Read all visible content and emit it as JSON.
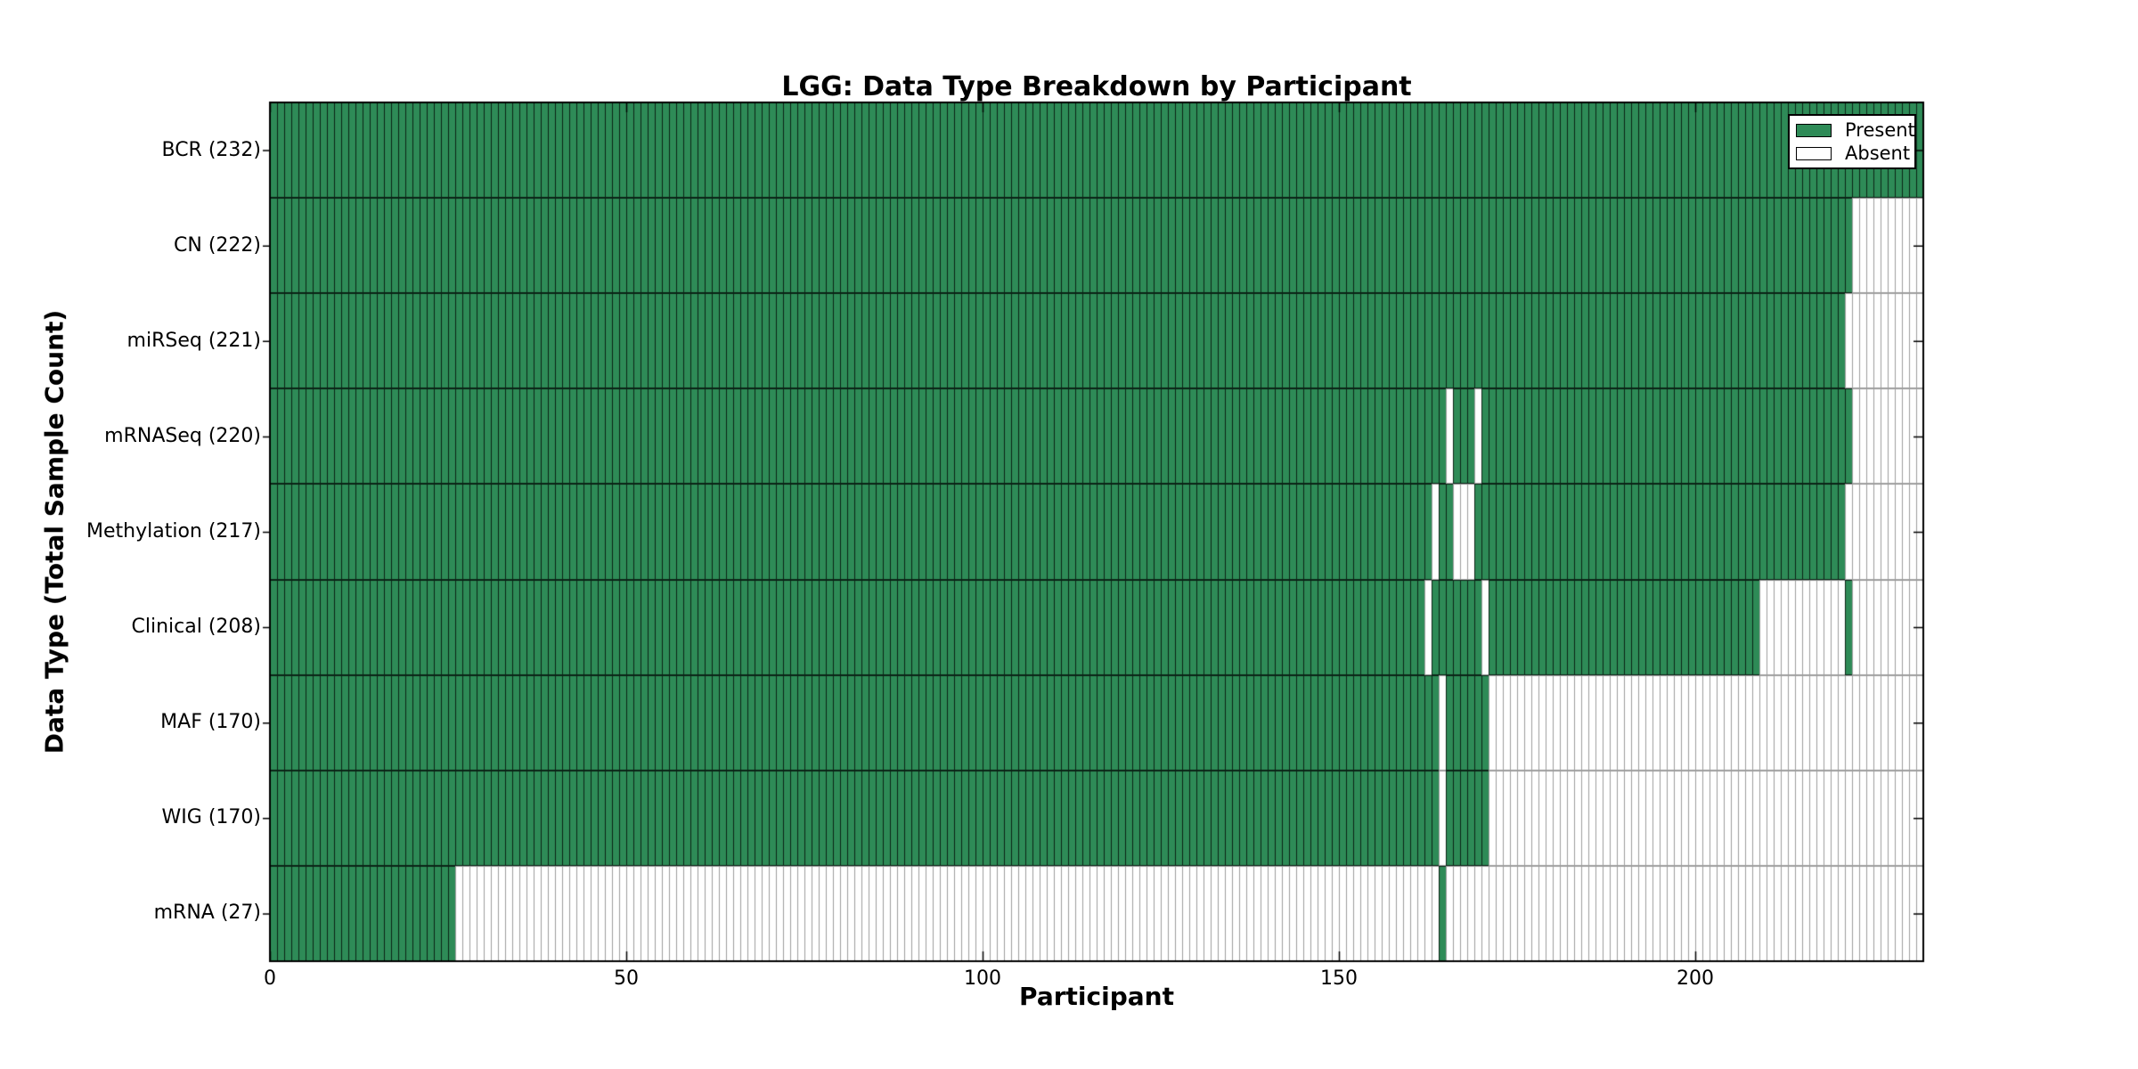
{
  "title": "LGG: Data Type Breakdown by Participant",
  "axes": {
    "x_label": "Participant",
    "y_label": "Data Type (Total Sample Count)"
  },
  "legend": {
    "items": [
      {
        "label": "Present",
        "color": "#2e8b57"
      },
      {
        "label": "Absent",
        "color": "#ffffff"
      }
    ]
  },
  "colors": {
    "present": "#2e8b57",
    "absent": "#ffffff",
    "present_edge": "rgba(0,0,0,0.75)",
    "absent_edge": "#9e9e9e",
    "axis": "#000000"
  },
  "chart_data": {
    "type": "heatmap",
    "title": "LGG: Data Type Breakdown by Participant",
    "xlabel": "Participant",
    "ylabel": "Data Type (Total Sample Count)",
    "xlim": [
      0,
      232
    ],
    "n_participants": 232,
    "x_ticks": [
      {
        "value": 0,
        "label": "0"
      },
      {
        "value": 50,
        "label": "50"
      },
      {
        "value": 100,
        "label": "100"
      },
      {
        "value": 150,
        "label": "150"
      },
      {
        "value": 200,
        "label": "200"
      }
    ],
    "legend": [
      "Present",
      "Absent"
    ],
    "encoding": "present_ranges are [start,end) participant index ranges where data is Present; all other cells in the row are Absent",
    "rows": [
      {
        "name": "BCR",
        "total": 232,
        "tick_label": "BCR (232)",
        "present_ranges": [
          [
            0,
            232
          ]
        ]
      },
      {
        "name": "CN",
        "total": 222,
        "tick_label": "CN (222)",
        "present_ranges": [
          [
            0,
            222
          ]
        ]
      },
      {
        "name": "miRSeq",
        "total": 221,
        "tick_label": "miRSeq (221)",
        "present_ranges": [
          [
            0,
            221
          ]
        ]
      },
      {
        "name": "mRNASeq",
        "total": 220,
        "tick_label": "mRNASeq (220)",
        "present_ranges": [
          [
            0,
            165
          ],
          [
            166,
            169
          ],
          [
            170,
            222
          ]
        ]
      },
      {
        "name": "Methylation",
        "total": 217,
        "tick_label": "Methylation (217)",
        "present_ranges": [
          [
            0,
            163
          ],
          [
            164,
            166
          ],
          [
            169,
            221
          ]
        ]
      },
      {
        "name": "Clinical",
        "total": 208,
        "tick_label": "Clinical (208)",
        "present_ranges": [
          [
            0,
            162
          ],
          [
            163,
            170
          ],
          [
            171,
            209
          ],
          [
            221,
            222
          ]
        ]
      },
      {
        "name": "MAF",
        "total": 170,
        "tick_label": "MAF (170)",
        "present_ranges": [
          [
            0,
            164
          ],
          [
            165,
            171
          ]
        ]
      },
      {
        "name": "WIG",
        "total": 170,
        "tick_label": "WIG (170)",
        "present_ranges": [
          [
            0,
            164
          ],
          [
            165,
            171
          ]
        ]
      },
      {
        "name": "mRNA",
        "total": 27,
        "tick_label": "mRNA (27)",
        "present_ranges": [
          [
            0,
            26
          ],
          [
            164,
            165
          ]
        ]
      }
    ]
  }
}
